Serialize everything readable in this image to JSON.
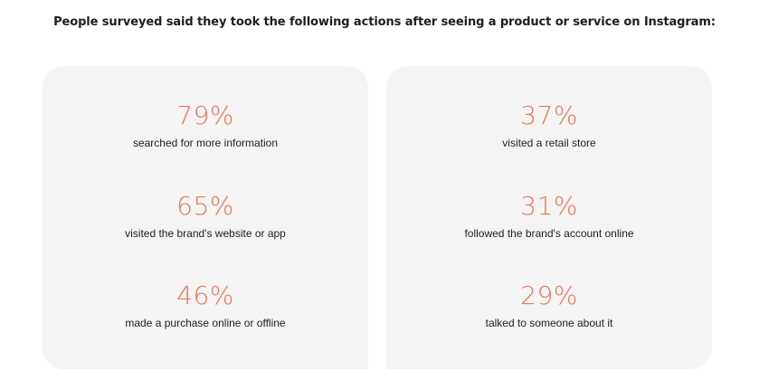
{
  "heading": "People surveyed said they took the following actions after seeing a product or service on Instagram:",
  "colors": {
    "accent": "#e8775a",
    "card_background": "#f4f4f4",
    "text": "#1c1e21"
  },
  "left_card": {
    "stats": [
      {
        "value": "79%",
        "label": "searched for more information"
      },
      {
        "value": "65%",
        "label": "visited the brand's website or app"
      },
      {
        "value": "46%",
        "label": "made a purchase online or offline"
      }
    ]
  },
  "right_card": {
    "stats": [
      {
        "value": "37%",
        "label": "visited a retail store"
      },
      {
        "value": "31%",
        "label": "followed the brand's account online"
      },
      {
        "value": "29%",
        "label": "talked to someone about it"
      }
    ]
  }
}
